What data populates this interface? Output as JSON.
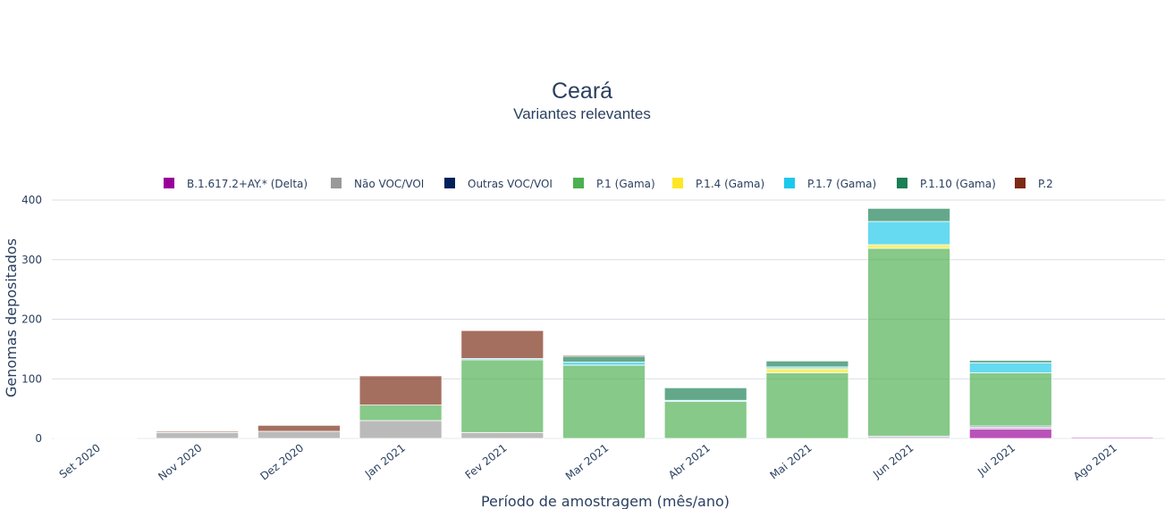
{
  "chart_data": {
    "type": "bar",
    "stacked": true,
    "title": "Ceará",
    "subtitle": "Variantes relevantes",
    "xlabel": "Período de amostragem (mês/ano)",
    "ylabel": "Genomas depositados",
    "ylim": [
      0,
      400
    ],
    "yticks": [
      0,
      100,
      200,
      300,
      400
    ],
    "grid": true,
    "legend_position": "top",
    "categories": [
      "Set 2020",
      "Nov 2020",
      "Dez 2020",
      "Jan 2021",
      "Fev 2021",
      "Mar 2021",
      "Abr 2021",
      "Mai 2021",
      "Jun 2021",
      "Jul 2021",
      "Ago 2021"
    ],
    "series": [
      {
        "name": "B.1.617.2+AY.* (Delta)",
        "color": "#990099",
        "values": [
          0,
          0,
          0,
          0,
          0,
          0,
          0,
          0,
          0,
          16,
          2
        ]
      },
      {
        "name": "Não VOC/VOI",
        "color": "#999999",
        "values": [
          1,
          10,
          12,
          30,
          10,
          0,
          0,
          0,
          2,
          3,
          1
        ]
      },
      {
        "name": "Outras VOC/VOI",
        "color": "#00205B",
        "values": [
          0,
          0,
          0,
          0,
          0,
          0,
          0,
          0,
          2,
          2,
          0
        ]
      },
      {
        "name": "P.1 (Gama)",
        "color": "#4CAF50",
        "values": [
          0,
          0,
          0,
          26,
          122,
          123,
          62,
          110,
          315,
          89,
          0
        ]
      },
      {
        "name": "P.1.4 (Gama)",
        "color": "#FDE725",
        "values": [
          0,
          0,
          0,
          0,
          0,
          0,
          0,
          7,
          6,
          0,
          0
        ]
      },
      {
        "name": "P.1.7 (Gama)",
        "color": "#1DC9EB",
        "values": [
          0,
          0,
          0,
          0,
          2,
          5,
          2,
          3,
          39,
          17,
          0
        ]
      },
      {
        "name": "P.1.10 (Gama)",
        "color": "#1A7F54",
        "values": [
          0,
          0,
          0,
          0,
          0,
          10,
          21,
          10,
          22,
          4,
          0
        ]
      },
      {
        "name": "P.2",
        "color": "#7B2B14",
        "values": [
          0,
          2,
          10,
          49,
          47,
          2,
          0,
          0,
          0,
          0,
          0
        ]
      }
    ]
  }
}
